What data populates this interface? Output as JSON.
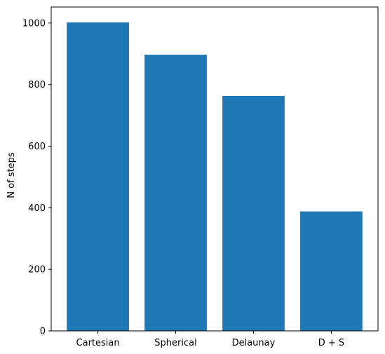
{
  "chart_data": {
    "type": "bar",
    "title": "",
    "xlabel": "",
    "ylabel": "N of steps",
    "categories": [
      "Cartesian",
      "Spherical",
      "Delaunay",
      "D + S"
    ],
    "values": [
      1002,
      897,
      763,
      388
    ],
    "ylim": [
      0,
      1052
    ],
    "yticks": [
      0,
      200,
      400,
      600,
      800,
      1000
    ],
    "grid": false,
    "legend": "none",
    "bar_color": "#1f77b4"
  }
}
